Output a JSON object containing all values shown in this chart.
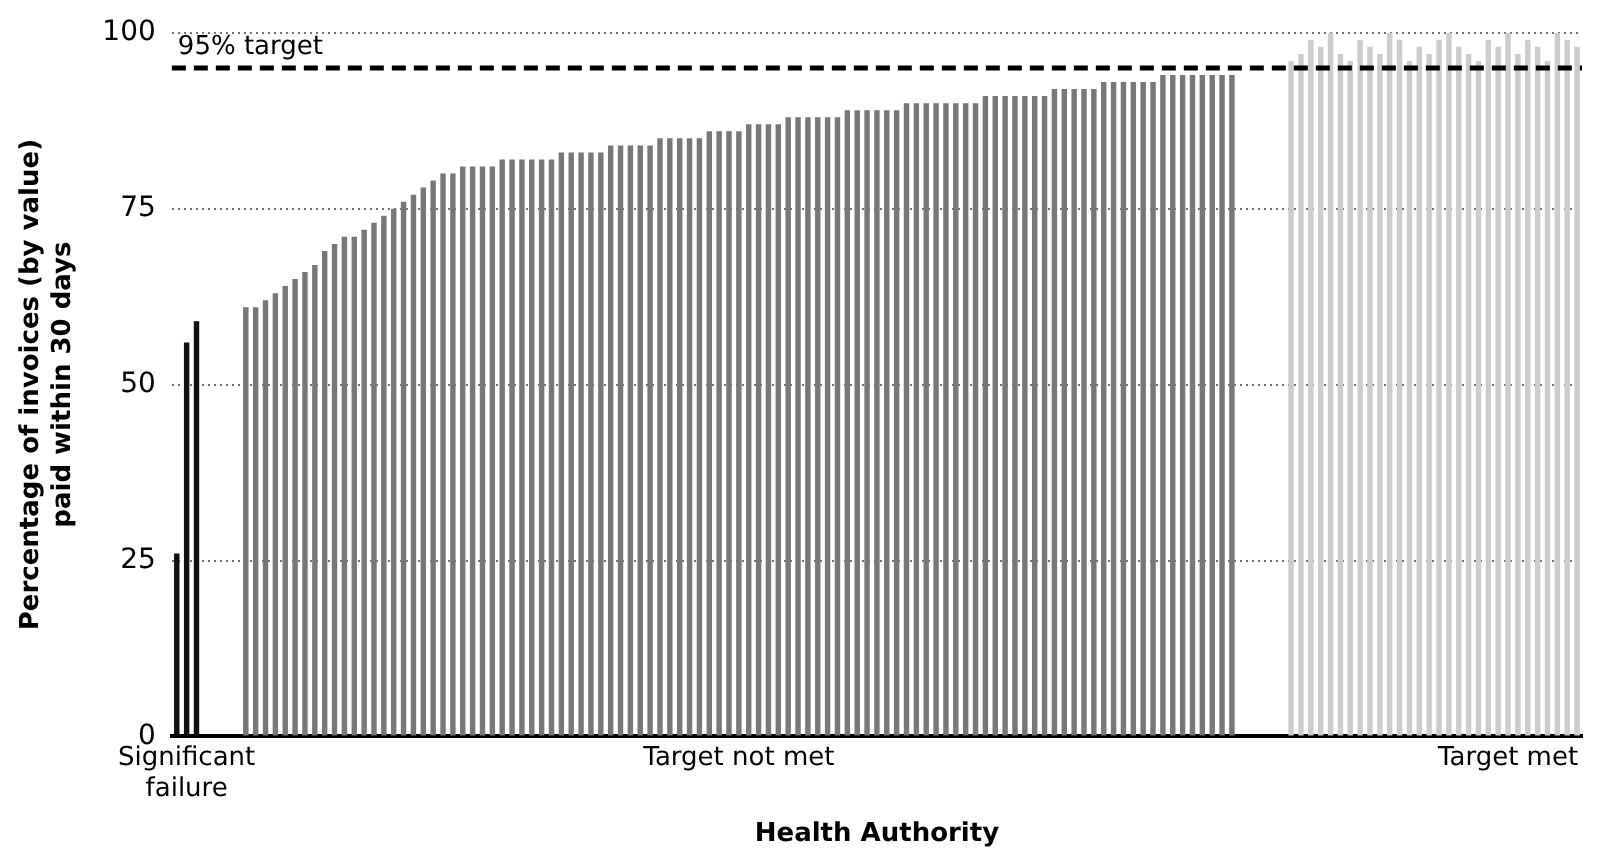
{
  "chart_data": {
    "type": "bar",
    "xlabel": "Health Authority",
    "ylabel": "Percentage of invoices (by value) paid within 30 days",
    "categories": [
      null,
      "Significant failure",
      null,
      null,
      null,
      null,
      null,
      null,
      null,
      null,
      null,
      null,
      null,
      null,
      null,
      null,
      null,
      null,
      null,
      null,
      null,
      null,
      null,
      null,
      null,
      null,
      null,
      null,
      null,
      null,
      null,
      null,
      null,
      null,
      null,
      null,
      null,
      null,
      null,
      null,
      null,
      null,
      null,
      null,
      null,
      null,
      null,
      null,
      null,
      null,
      null,
      null,
      null,
      null,
      null,
      null,
      null,
      "Target not met",
      null,
      null,
      null,
      null,
      null,
      null,
      null,
      null,
      null,
      null,
      null,
      null,
      null,
      null,
      null,
      null,
      null,
      null,
      null,
      null,
      null,
      null,
      null,
      null,
      null,
      null,
      null,
      null,
      null,
      null,
      null,
      null,
      null,
      null,
      null,
      null,
      null,
      null,
      null,
      null,
      null,
      null,
      null,
      null,
      null,
      null,
      null,
      null,
      null,
      null,
      null,
      null,
      null,
      null,
      null,
      null,
      null,
      null,
      null,
      null,
      null,
      null,
      null,
      null,
      null,
      null,
      null,
      null,
      null,
      null,
      null,
      null,
      null,
      null,
      null,
      null,
      null,
      "Target met",
      null,
      null,
      null,
      null,
      null,
      null,
      null
    ],
    "values": [
      26,
      56,
      59,
      null,
      null,
      null,
      null,
      61,
      61,
      62,
      63,
      64,
      65,
      66,
      67,
      69,
      70,
      71,
      71,
      72,
      73,
      74,
      75,
      76,
      77,
      78,
      79,
      80,
      80,
      81,
      81,
      81,
      81,
      82,
      82,
      82,
      82,
      82,
      82,
      83,
      83,
      83,
      83,
      83,
      84,
      84,
      84,
      84,
      84,
      85,
      85,
      85,
      85,
      85,
      86,
      86,
      86,
      86,
      87,
      87,
      87,
      87,
      88,
      88,
      88,
      88,
      88,
      88,
      89,
      89,
      89,
      89,
      89,
      89,
      90,
      90,
      90,
      90,
      90,
      90,
      90,
      90,
      91,
      91,
      91,
      91,
      91,
      91,
      91,
      92,
      92,
      92,
      92,
      92,
      93,
      93,
      93,
      93,
      93,
      93,
      94,
      94,
      94,
      94,
      94,
      94,
      94,
      94,
      null,
      null,
      null,
      null,
      null,
      96,
      97,
      99,
      98,
      100,
      97,
      96,
      99,
      98,
      97,
      100,
      99,
      96,
      98,
      97,
      99,
      100,
      98,
      97,
      96,
      99,
      98,
      100,
      97,
      99,
      98,
      96,
      100,
      99,
      98
    ],
    "colors": [
      "#111111",
      "#111111",
      "#111111",
      null,
      null,
      null,
      null,
      "#777777",
      "#777777",
      "#777777",
      "#777777",
      "#777777",
      "#777777",
      "#777777",
      "#777777",
      "#777777",
      "#777777",
      "#777777",
      "#777777",
      "#777777",
      "#777777",
      "#777777",
      "#777777",
      "#777777",
      "#777777",
      "#777777",
      "#777777",
      "#777777",
      "#777777",
      "#777777",
      "#777777",
      "#777777",
      "#777777",
      "#777777",
      "#777777",
      "#777777",
      "#777777",
      "#777777",
      "#777777",
      "#777777",
      "#777777",
      "#777777",
      "#777777",
      "#777777",
      "#777777",
      "#777777",
      "#777777",
      "#777777",
      "#777777",
      "#777777",
      "#777777",
      "#777777",
      "#777777",
      "#777777",
      "#777777",
      "#777777",
      "#777777",
      "#777777",
      "#777777",
      "#777777",
      "#777777",
      "#777777",
      "#777777",
      "#777777",
      "#777777",
      "#777777",
      "#777777",
      "#777777",
      "#777777",
      "#777777",
      "#777777",
      "#777777",
      "#777777",
      "#777777",
      "#777777",
      "#777777",
      "#777777",
      "#777777",
      "#777777",
      "#777777",
      "#777777",
      "#777777",
      "#777777",
      "#777777",
      "#777777",
      "#777777",
      "#777777",
      "#777777",
      "#777777",
      "#777777",
      "#777777",
      "#777777",
      "#777777",
      "#777777",
      "#777777",
      "#777777",
      "#777777",
      "#777777",
      "#777777",
      "#777777",
      "#777777",
      "#777777",
      "#777777",
      "#777777",
      "#777777",
      "#777777",
      "#777777",
      "#777777",
      null,
      null,
      null,
      null,
      null,
      "#cccccc",
      "#cccccc",
      "#cccccc",
      "#cccccc",
      "#cccccc",
      "#cccccc",
      "#cccccc",
      "#cccccc",
      "#cccccc",
      "#cccccc",
      "#cccccc",
      "#cccccc",
      "#cccccc",
      "#cccccc",
      "#cccccc",
      "#cccccc",
      "#cccccc",
      "#cccccc",
      "#cccccc",
      "#cccccc",
      "#cccccc",
      "#cccccc",
      "#cccccc",
      "#cccccc",
      "#cccccc",
      "#cccccc",
      "#cccccc",
      "#cccccc",
      "#cccccc",
      "#cccccc"
    ],
    "ylim": [
      0,
      100
    ],
    "yticks": [
      0,
      25,
      50,
      75,
      100
    ],
    "grid": "y",
    "legend": false,
    "ref_lines": [
      {
        "axis": "y",
        "value": 95,
        "label": "95% target",
        "color": "#000000",
        "line_style": "dashed"
      }
    ]
  }
}
